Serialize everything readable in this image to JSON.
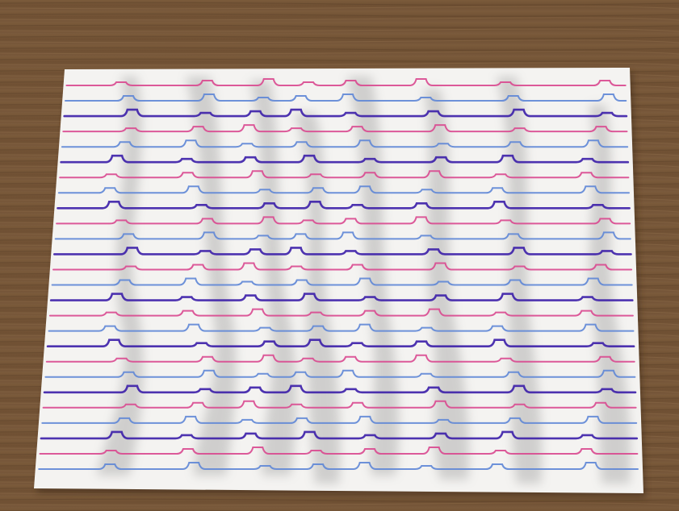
{
  "scene": {
    "subject": "line-art-paper-on-wooden-table",
    "line_colors": [
      "#d9488f",
      "#5e86d6",
      "#3b1ea8"
    ],
    "table_color": "#7a5a3c",
    "paper_color": "#f4f3f1"
  }
}
